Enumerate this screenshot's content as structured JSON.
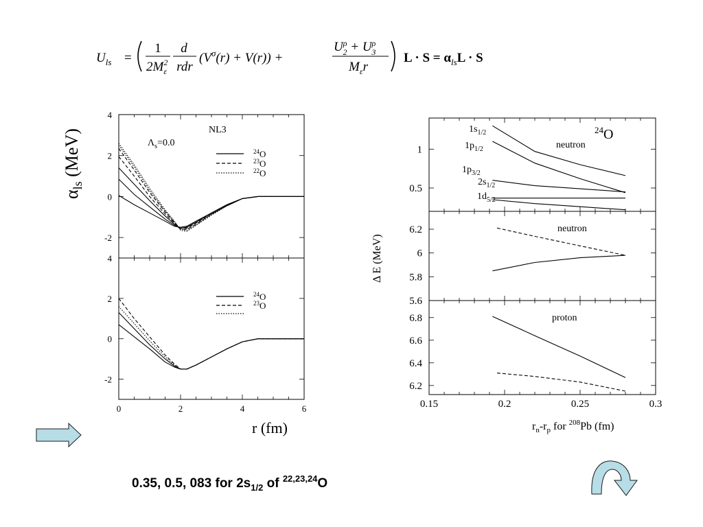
{
  "formula": {
    "lhs": "U",
    "lhs_sub": "ls",
    "eq": "=",
    "frac1_num": "1",
    "frac1_den_a": "2M",
    "frac1_den_sup": "2",
    "frac1_den_sub": "ε",
    "frac2_num": "d",
    "frac2_den": "rdr",
    "paren_term_a": "(V",
    "paren_term_sup": "σ",
    "paren_term_b": "(r) + V(r)) +",
    "frac3_num_a": "U",
    "frac3_num_sup1": "ρ",
    "frac3_num_sub1": "2",
    "frac3_num_mid": " + U",
    "frac3_num_sup2": "ρ",
    "frac3_num_sub2": "3",
    "frac3_den_a": "M",
    "frac3_den_sub": "ε",
    "frac3_den_b": "r",
    "rhs": "L · S = α",
    "rhs_sub": "ls",
    "rhs_end": "L · S"
  },
  "caption": {
    "text_main": "0.35, 0.5, 083  for 2s",
    "text_sub": "1/2",
    "text_of": " of ",
    "text_sup": "22,23,24",
    "text_end": "O"
  },
  "colors": {
    "arrow_fill": "#b7dde6",
    "arrow_stroke": "#1a1a1a",
    "line": "#000000"
  },
  "icons": {
    "left": "right-arrow-icon",
    "right": "curved-arrow-icon"
  },
  "chart_data": [
    {
      "id": "alpha-top",
      "type": "line",
      "ylabel_main": "α",
      "ylabel_sub": "ls",
      "ylabel_unit": " (MeV)",
      "xlim": [
        0,
        6
      ],
      "ylim": [
        -3,
        4
      ],
      "yticks": [
        4,
        2,
        0,
        -2
      ],
      "annotation_nl3": "NL3",
      "annotation_lambda": "Λ",
      "annotation_lambda_sub": "s",
      "annotation_lambda_val": "=0.0",
      "legend": [
        {
          "sup": "24",
          "label": "O",
          "style": "solid"
        },
        {
          "sup": "23",
          "label": "O",
          "style": "dashed"
        },
        {
          "sup": "22",
          "label": "O",
          "style": "dotted"
        }
      ],
      "series": [
        {
          "style": "solid",
          "x": [
            0,
            0.5,
            1.0,
            1.5,
            1.8,
            2.0,
            2.2,
            2.5,
            3.0,
            3.5,
            4.0,
            4.5,
            5.0,
            6.0
          ],
          "y": [
            0.05,
            -0.4,
            -0.8,
            -1.2,
            -1.45,
            -1.5,
            -1.45,
            -1.2,
            -0.8,
            -0.4,
            -0.1,
            0.0,
            0.0,
            0.0
          ]
        },
        {
          "style": "solid",
          "x": [
            0,
            0.5,
            1.0,
            1.5,
            1.8,
            2.0,
            2.2,
            2.5,
            3.0,
            3.5,
            4.0,
            4.5,
            5.0,
            6.0
          ],
          "y": [
            0.85,
            0.1,
            -0.5,
            -1.1,
            -1.4,
            -1.55,
            -1.5,
            -1.25,
            -0.8,
            -0.4,
            -0.1,
            0.0,
            0.0,
            0.0
          ]
        },
        {
          "style": "solid",
          "x": [
            0,
            0.5,
            1.0,
            1.5,
            1.8,
            2.0,
            2.2,
            2.5,
            3.0,
            3.5,
            4.0,
            4.5,
            5.0,
            6.0
          ],
          "y": [
            1.4,
            0.6,
            -0.2,
            -0.95,
            -1.35,
            -1.55,
            -1.5,
            -1.25,
            -0.8,
            -0.4,
            -0.1,
            0.0,
            0.0,
            0.0
          ]
        },
        {
          "style": "dashed",
          "x": [
            0,
            0.5,
            1.0,
            1.5,
            1.8,
            2.0,
            2.2,
            2.5,
            3.0,
            3.5,
            4.0,
            4.5,
            5.0,
            6.0
          ],
          "y": [
            1.95,
            1.0,
            0.0,
            -0.85,
            -1.3,
            -1.55,
            -1.55,
            -1.3,
            -0.85,
            -0.45,
            -0.1,
            0.0,
            0.0,
            0.0
          ]
        },
        {
          "style": "dashed",
          "x": [
            0,
            0.5,
            1.0,
            1.5,
            1.8,
            2.0,
            2.2,
            2.5,
            3.0,
            3.5,
            4.0,
            4.5,
            5.0,
            6.0
          ],
          "y": [
            2.35,
            1.3,
            0.2,
            -0.75,
            -1.25,
            -1.6,
            -1.6,
            -1.35,
            -0.85,
            -0.45,
            -0.1,
            0.0,
            0.0,
            0.0
          ]
        },
        {
          "style": "dotted",
          "x": [
            0,
            0.5,
            1.0,
            1.5,
            1.8,
            2.0,
            2.2,
            2.5,
            3.0,
            3.5,
            4.0,
            4.5,
            5.0,
            6.0
          ],
          "y": [
            2.5,
            1.45,
            0.3,
            -0.7,
            -1.25,
            -1.6,
            -1.65,
            -1.4,
            -0.9,
            -0.45,
            -0.1,
            0.0,
            0.0,
            0.0
          ]
        },
        {
          "style": "dotted",
          "x": [
            0,
            0.5,
            1.0,
            1.5,
            1.8,
            2.0,
            2.2,
            2.5,
            3.0,
            3.5,
            4.0,
            4.5,
            5.0,
            6.0
          ],
          "y": [
            2.6,
            1.55,
            0.4,
            -0.65,
            -1.2,
            -1.65,
            -1.7,
            -1.4,
            -0.9,
            -0.45,
            -0.1,
            0.0,
            0.0,
            0.0
          ]
        }
      ]
    },
    {
      "id": "alpha-bottom",
      "type": "line",
      "xlabel": "r (fm)",
      "xlim": [
        0,
        6
      ],
      "ylim": [
        -3,
        4
      ],
      "xticks": [
        0,
        2,
        4,
        6
      ],
      "yticks": [
        4,
        2,
        0,
        -2
      ],
      "legend": [
        {
          "sup": "24",
          "label": "O",
          "style": "solid"
        },
        {
          "sup": "23",
          "label": "O",
          "style": "dashed"
        },
        {
          "sup": "",
          "label": "",
          "style": "dotted"
        }
      ],
      "series": [
        {
          "style": "solid",
          "x": [
            0,
            0.5,
            1.0,
            1.5,
            1.8,
            2.0,
            2.2,
            2.5,
            3.0,
            3.5,
            4.0,
            4.5,
            5.0,
            6.0
          ],
          "y": [
            0.7,
            0.1,
            -0.5,
            -1.15,
            -1.4,
            -1.5,
            -1.5,
            -1.3,
            -0.9,
            -0.5,
            -0.15,
            0.0,
            0.0,
            0.0
          ]
        },
        {
          "style": "solid",
          "x": [
            0,
            0.5,
            1.0,
            1.5,
            1.8,
            2.0,
            2.2,
            2.5,
            3.0,
            3.5,
            4.0,
            4.5,
            5.0,
            6.0
          ],
          "y": [
            1.3,
            0.5,
            -0.3,
            -1.0,
            -1.35,
            -1.5,
            -1.5,
            -1.3,
            -0.9,
            -0.5,
            -0.15,
            0.0,
            0.0,
            0.0
          ]
        },
        {
          "style": "dotted",
          "x": [
            0,
            0.5,
            1.0,
            1.5,
            1.8,
            2.0,
            2.2,
            2.5,
            3.0,
            3.5,
            4.0,
            4.5,
            5.0,
            6.0
          ],
          "y": [
            1.6,
            0.75,
            -0.1,
            -0.9,
            -1.3,
            -1.5,
            -1.5,
            -1.3,
            -0.9,
            -0.5,
            -0.15,
            0.0,
            0.0,
            0.0
          ]
        },
        {
          "style": "dashed",
          "x": [
            0,
            0.5,
            1.0,
            1.5,
            1.8,
            2.0,
            2.2,
            2.5,
            3.0,
            3.5,
            4.0,
            4.5,
            5.0,
            6.0
          ],
          "y": [
            2.0,
            1.0,
            0.1,
            -0.8,
            -1.25,
            -1.5,
            -1.5,
            -1.3,
            -0.9,
            -0.5,
            -0.15,
            0.0,
            0.0,
            0.0
          ]
        }
      ]
    },
    {
      "id": "deltaE-top",
      "type": "line",
      "xlim": [
        0.15,
        0.3
      ],
      "ylim": [
        0.2,
        1.4
      ],
      "yticks": [
        1,
        0.5
      ],
      "annotation_nucleus_sup": "24",
      "annotation_nucleus": "O",
      "annotation_label": "neutron",
      "level_labels": [
        {
          "main": "1s",
          "sub": "1/2"
        },
        {
          "main": "1p",
          "sub": "1/2"
        },
        {
          "main": "1p",
          "sub": "3/2"
        },
        {
          "main": "2s",
          "sub": "1/2"
        },
        {
          "main": "1d",
          "sub": "5/2"
        }
      ],
      "series": [
        {
          "style": "solid",
          "x": [
            0.192,
            0.22,
            0.25,
            0.28
          ],
          "y": [
            1.3,
            0.97,
            0.8,
            0.66
          ]
        },
        {
          "style": "solid",
          "x": [
            0.192,
            0.22,
            0.25,
            0.28
          ],
          "y": [
            1.1,
            0.82,
            0.62,
            0.44
          ]
        },
        {
          "style": "solid",
          "x": [
            0.192,
            0.22,
            0.25,
            0.28
          ],
          "y": [
            0.6,
            0.53,
            0.49,
            0.45
          ]
        },
        {
          "style": "solid",
          "x": [
            0.192,
            0.22,
            0.25,
            0.28
          ],
          "y": [
            0.37,
            0.37,
            0.37,
            0.37
          ]
        },
        {
          "style": "solid",
          "x": [
            0.192,
            0.22,
            0.25,
            0.28
          ],
          "y": [
            0.35,
            0.3,
            0.26,
            0.22
          ]
        }
      ]
    },
    {
      "id": "deltaE-mid",
      "type": "line",
      "ylabel": "Δ E (MeV)",
      "xlim": [
        0.15,
        0.3
      ],
      "ylim": [
        5.6,
        6.35
      ],
      "yticks": [
        6.2,
        6,
        5.8,
        5.6
      ],
      "annotation_label": "neutron",
      "series": [
        {
          "style": "dashed",
          "x": [
            0.195,
            0.22,
            0.25,
            0.28
          ],
          "y": [
            6.21,
            6.14,
            6.06,
            5.98
          ]
        },
        {
          "style": "solid",
          "x": [
            0.192,
            0.22,
            0.25,
            0.28
          ],
          "y": [
            5.85,
            5.92,
            5.96,
            5.98
          ]
        }
      ]
    },
    {
      "id": "deltaE-bottom",
      "type": "line",
      "xlabel_main": "r",
      "xlabel_sub1": "n",
      "xlabel_mid": "-r",
      "xlabel_sub2": "p",
      "xlabel_for": " for ",
      "xlabel_sup": "208",
      "xlabel_end": "Pb (fm)",
      "xlim": [
        0.15,
        0.3
      ],
      "ylim": [
        6.12,
        6.95
      ],
      "xticks": [
        0.15,
        0.2,
        0.25,
        0.3
      ],
      "xtick_labels": [
        "0.15",
        "0.2",
        "0.25",
        "0.3"
      ],
      "yticks": [
        6.8,
        6.6,
        6.4,
        6.2
      ],
      "annotation_label": "proton",
      "series": [
        {
          "style": "solid",
          "x": [
            0.192,
            0.22,
            0.25,
            0.28
          ],
          "y": [
            6.81,
            6.64,
            6.46,
            6.27
          ]
        },
        {
          "style": "dashed",
          "x": [
            0.195,
            0.22,
            0.25,
            0.28
          ],
          "y": [
            6.31,
            6.28,
            6.23,
            6.15
          ]
        }
      ]
    }
  ]
}
